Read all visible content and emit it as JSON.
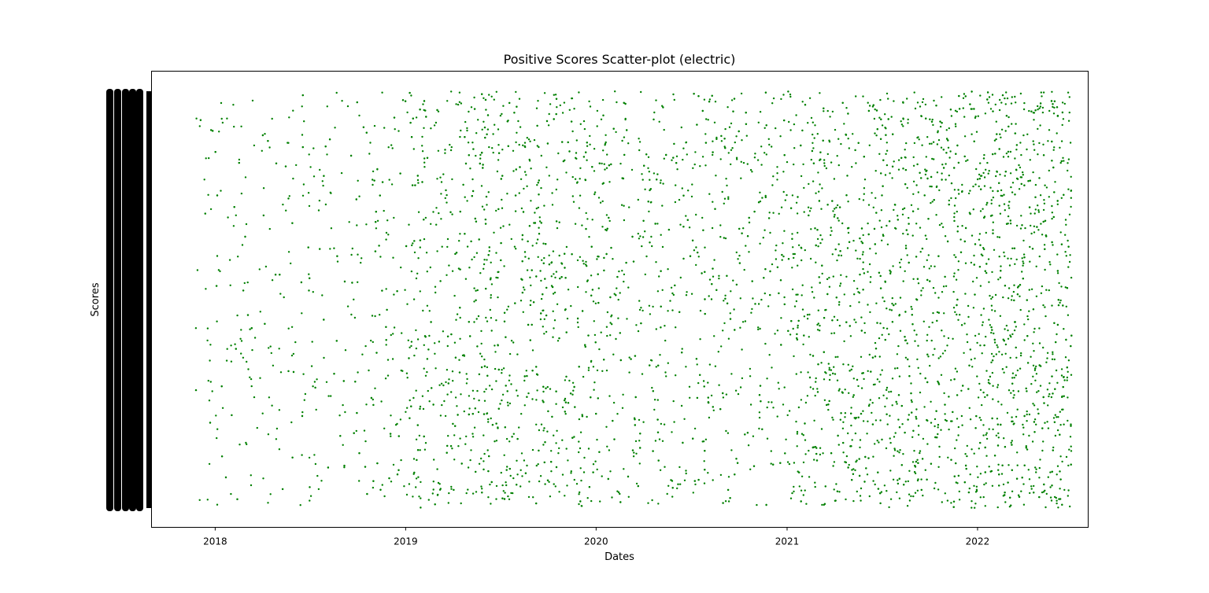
{
  "chart_data": {
    "type": "scatter",
    "title": "Positive Scores Scatter-plot (electric)",
    "xlabel": "Dates",
    "ylabel": "Scores",
    "x_axis": {
      "kind": "date",
      "range": [
        "2017-09-01",
        "2022-08-01"
      ],
      "tick_labels": [
        "2018",
        "2019",
        "2020",
        "2021",
        "2022"
      ],
      "tick_dates": [
        "2018-01-01",
        "2019-01-01",
        "2020-01-01",
        "2021-01-01",
        "2022-01-01"
      ]
    },
    "y_axis": {
      "kind": "categorical",
      "tick_labels_legible": false
    },
    "marker_color": "#008000",
    "grid": false,
    "legend": "none",
    "data_span": [
      "2017-11-25",
      "2022-06-30"
    ],
    "density_by_year": [
      {
        "year": "2017",
        "relative_density": 0.25
      },
      {
        "year": "2018",
        "relative_density": 0.35
      },
      {
        "year": "2019",
        "relative_density": 0.8
      },
      {
        "year": "2020",
        "relative_density": 0.6
      },
      {
        "year": "2021",
        "relative_density": 1.0
      },
      {
        "year": "2022",
        "relative_density": 1.3
      }
    ]
  }
}
